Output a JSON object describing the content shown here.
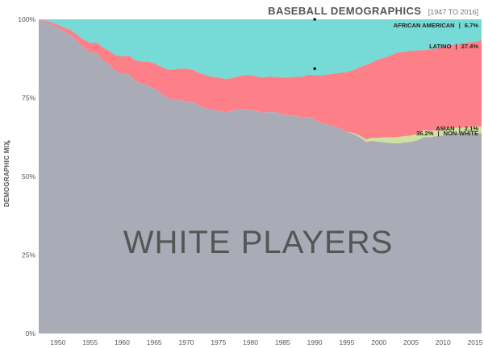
{
  "header": {
    "title": "BASEBALL DEMOGRAPHICS",
    "subtitle": "[1947 TO 2016]"
  },
  "chart_data": {
    "type": "area",
    "stacked": true,
    "title": "BASEBALL DEMOGRAPHICS",
    "subtitle": "[1947 TO 2016]",
    "xlabel": "",
    "ylabel": "DEMOGRAPHIC MIX",
    "x_ticks": [
      1950,
      1955,
      1960,
      1965,
      1970,
      1975,
      1980,
      1985,
      1990,
      1995,
      2000,
      2005,
      2010,
      2015
    ],
    "y_ticks": [
      "0%",
      "25%",
      "50%",
      "75%",
      "100%"
    ],
    "xlim": [
      1947,
      2016
    ],
    "ylim": [
      0,
      100
    ],
    "grid": false,
    "big_label": "WHITE PLAYERS",
    "colors": {
      "white": "#a9acb6",
      "asian": "#cfe0a0",
      "latino": "#fd7f88",
      "african_american": "#76dad6"
    },
    "series": [
      {
        "key": "white",
        "values": [
          [
            1947,
            99.8
          ],
          [
            1948,
            99.3
          ],
          [
            1949,
            98.3
          ],
          [
            1950,
            97.3
          ],
          [
            1951,
            96.0
          ],
          [
            1952,
            95.0
          ],
          [
            1953,
            93.0
          ],
          [
            1954,
            91.0
          ],
          [
            1955,
            89.5
          ],
          [
            1956,
            89.3
          ],
          [
            1957,
            87.0
          ],
          [
            1958,
            85.5
          ],
          [
            1959,
            83.5
          ],
          [
            1960,
            82.7
          ],
          [
            1961,
            82.5
          ],
          [
            1962,
            80.5
          ],
          [
            1963,
            79.5
          ],
          [
            1964,
            79.0
          ],
          [
            1965,
            78.0
          ],
          [
            1966,
            76.5
          ],
          [
            1967,
            75.0
          ],
          [
            1968,
            74.5
          ],
          [
            1969,
            74.3
          ],
          [
            1970,
            73.8
          ],
          [
            1971,
            73.6
          ],
          [
            1972,
            72.5
          ],
          [
            1973,
            71.7
          ],
          [
            1974,
            71.2
          ],
          [
            1975,
            71.0
          ],
          [
            1976,
            70.3
          ],
          [
            1977,
            70.8
          ],
          [
            1978,
            71.2
          ],
          [
            1979,
            71.5
          ],
          [
            1980,
            71.0
          ],
          [
            1981,
            70.8
          ],
          [
            1982,
            70.3
          ],
          [
            1983,
            70.5
          ],
          [
            1984,
            70.4
          ],
          [
            1985,
            69.7
          ],
          [
            1986,
            69.5
          ],
          [
            1987,
            69.3
          ],
          [
            1988,
            68.5
          ],
          [
            1989,
            69.0
          ],
          [
            1990,
            68.0
          ],
          [
            1991,
            67.0
          ],
          [
            1992,
            66.5
          ],
          [
            1993,
            66.0
          ],
          [
            1994,
            65.2
          ],
          [
            1995,
            64.3
          ],
          [
            1996,
            63.5
          ],
          [
            1997,
            62.5
          ],
          [
            1998,
            61.0
          ],
          [
            1999,
            61.3
          ],
          [
            2000,
            61.0
          ],
          [
            2001,
            60.8
          ],
          [
            2002,
            60.6
          ],
          [
            2003,
            60.5
          ],
          [
            2004,
            60.8
          ],
          [
            2005,
            61.0
          ],
          [
            2006,
            61.5
          ],
          [
            2007,
            62.5
          ],
          [
            2008,
            62.5
          ],
          [
            2009,
            62.8
          ],
          [
            2010,
            63.0
          ],
          [
            2011,
            63.5
          ],
          [
            2012,
            63.5
          ],
          [
            2013,
            63.5
          ],
          [
            2014,
            63.7
          ],
          [
            2015,
            63.8
          ],
          [
            2016,
            63.8
          ]
        ]
      },
      {
        "key": "asian",
        "values": [
          [
            1947,
            0
          ],
          [
            1948,
            0
          ],
          [
            1949,
            0
          ],
          [
            1950,
            0
          ],
          [
            1951,
            0
          ],
          [
            1952,
            0
          ],
          [
            1953,
            0
          ],
          [
            1954,
            0
          ],
          [
            1955,
            0
          ],
          [
            1956,
            0
          ],
          [
            1957,
            0
          ],
          [
            1958,
            0
          ],
          [
            1959,
            0
          ],
          [
            1960,
            0
          ],
          [
            1961,
            0
          ],
          [
            1962,
            0
          ],
          [
            1963,
            0
          ],
          [
            1964,
            0
          ],
          [
            1965,
            0
          ],
          [
            1966,
            0
          ],
          [
            1967,
            0
          ],
          [
            1968,
            0
          ],
          [
            1969,
            0
          ],
          [
            1970,
            0
          ],
          [
            1971,
            0
          ],
          [
            1972,
            0
          ],
          [
            1973,
            0
          ],
          [
            1974,
            0
          ],
          [
            1975,
            0
          ],
          [
            1976,
            0
          ],
          [
            1977,
            0
          ],
          [
            1978,
            0
          ],
          [
            1979,
            0
          ],
          [
            1980,
            0
          ],
          [
            1981,
            0
          ],
          [
            1982,
            0
          ],
          [
            1983,
            0
          ],
          [
            1984,
            0
          ],
          [
            1985,
            0
          ],
          [
            1986,
            0
          ],
          [
            1987,
            0
          ],
          [
            1988,
            0
          ],
          [
            1989,
            0
          ],
          [
            1990,
            0
          ],
          [
            1991,
            0
          ],
          [
            1992,
            0
          ],
          [
            1993,
            0
          ],
          [
            1994,
            0
          ],
          [
            1995,
            0
          ],
          [
            1996,
            0.3
          ],
          [
            1997,
            0.5
          ],
          [
            1998,
            0.8
          ],
          [
            1999,
            1.0
          ],
          [
            2000,
            1.3
          ],
          [
            2001,
            1.6
          ],
          [
            2002,
            1.8
          ],
          [
            2003,
            2.0
          ],
          [
            2004,
            2.0
          ],
          [
            2005,
            2.0
          ],
          [
            2006,
            2.0
          ],
          [
            2007,
            2.2
          ],
          [
            2008,
            2.0
          ],
          [
            2009,
            1.9
          ],
          [
            2010,
            1.9
          ],
          [
            2011,
            2.0
          ],
          [
            2012,
            2.0
          ],
          [
            2013,
            2.0
          ],
          [
            2014,
            2.1
          ],
          [
            2015,
            2.1
          ],
          [
            2016,
            2.1
          ]
        ]
      },
      {
        "key": "latino",
        "values": [
          [
            1947,
            0.2
          ],
          [
            1948,
            0.4
          ],
          [
            1949,
            0.7
          ],
          [
            1950,
            1.0
          ],
          [
            1951,
            1.3
          ],
          [
            1952,
            1.6
          ],
          [
            1953,
            2.0
          ],
          [
            1954,
            2.5
          ],
          [
            1955,
            3.0
          ],
          [
            1956,
            3.3
          ],
          [
            1957,
            4.0
          ],
          [
            1958,
            4.5
          ],
          [
            1959,
            5.0
          ],
          [
            1960,
            5.5
          ],
          [
            1961,
            6.0
          ],
          [
            1962,
            6.5
          ],
          [
            1963,
            7.0
          ],
          [
            1964,
            7.5
          ],
          [
            1965,
            8.0
          ],
          [
            1966,
            8.5
          ],
          [
            1967,
            9.0
          ],
          [
            1968,
            9.5
          ],
          [
            1969,
            10.0
          ],
          [
            1970,
            10.5
          ],
          [
            1971,
            10.3
          ],
          [
            1972,
            10.5
          ],
          [
            1973,
            10.5
          ],
          [
            1974,
            10.5
          ],
          [
            1975,
            10.5
          ],
          [
            1976,
            10.7
          ],
          [
            1977,
            10.4
          ],
          [
            1978,
            10.6
          ],
          [
            1979,
            10.7
          ],
          [
            1980,
            11.2
          ],
          [
            1981,
            11.0
          ],
          [
            1982,
            11.2
          ],
          [
            1983,
            11.3
          ],
          [
            1984,
            11.3
          ],
          [
            1985,
            11.8
          ],
          [
            1986,
            12.0
          ],
          [
            1987,
            12.4
          ],
          [
            1988,
            13.2
          ],
          [
            1989,
            13.4
          ],
          [
            1990,
            14.2
          ],
          [
            1991,
            15.2
          ],
          [
            1992,
            15.9
          ],
          [
            1993,
            16.7
          ],
          [
            1994,
            17.8
          ],
          [
            1995,
            18.9
          ],
          [
            1996,
            20.0
          ],
          [
            1997,
            21.8
          ],
          [
            1998,
            23.7
          ],
          [
            1999,
            24.0
          ],
          [
            2000,
            25.0
          ],
          [
            2001,
            25.5
          ],
          [
            2002,
            26.3
          ],
          [
            2003,
            27.0
          ],
          [
            2004,
            26.8
          ],
          [
            2005,
            27.0
          ],
          [
            2006,
            26.6
          ],
          [
            2007,
            25.5
          ],
          [
            2008,
            25.9
          ],
          [
            2009,
            26.1
          ],
          [
            2010,
            26.3
          ],
          [
            2011,
            26.3
          ],
          [
            2012,
            26.5
          ],
          [
            2013,
            26.8
          ],
          [
            2014,
            26.9
          ],
          [
            2015,
            27.0
          ],
          [
            2016,
            27.4
          ]
        ]
      },
      {
        "key": "african_american",
        "values": []
      }
    ],
    "series_labels": {
      "african_american": {
        "name": "AFRICAN AMERICAN",
        "value": "6.7%"
      },
      "latino": {
        "name": "LATINO",
        "value": "27.4%"
      },
      "asian": {
        "name": "ASIAN",
        "value": "2.1%"
      },
      "non_white": {
        "name": "NON-WHITE",
        "value": "36.2%"
      }
    },
    "separator_glyph": "|",
    "annotation_points": [
      {
        "x": 1990,
        "y": 100
      },
      {
        "x": 1990,
        "y": 84.3
      }
    ]
  }
}
